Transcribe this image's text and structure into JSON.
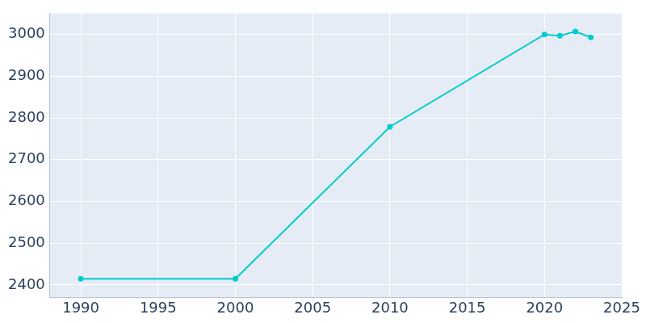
{
  "chart_data": {
    "type": "line",
    "x": [
      1990,
      2000,
      2010,
      2020,
      2021,
      2022,
      2023
    ],
    "values": [
      2415,
      2415,
      2779,
      3000,
      2997,
      3007,
      2993
    ],
    "color": "#00cccc",
    "marker": "circle",
    "xlim": [
      1988,
      2025
    ],
    "xticks": [
      1990,
      1995,
      2000,
      2005,
      2010,
      2015,
      2020,
      2025
    ],
    "ylim": [
      2370,
      3050
    ],
    "yticks": [
      2400,
      2500,
      2600,
      2700,
      2800,
      2900,
      3000
    ],
    "grid": true
  }
}
